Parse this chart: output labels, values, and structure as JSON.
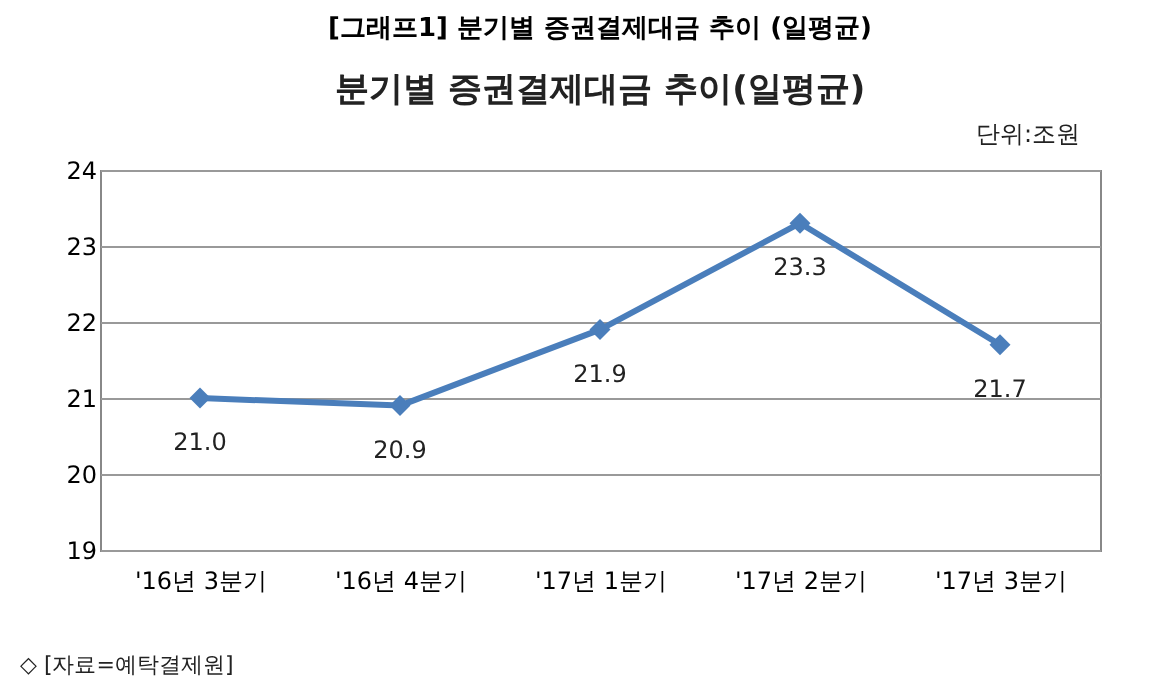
{
  "chart_data": {
    "type": "line",
    "title": "[그래프1] 분기별 증권결제대금 추이 (일평균)",
    "subtitle": "분기별 증권결제대금 추이(일평균)",
    "annotations": [
      "단위:조원",
      "◇ [자료=예탁결제원]"
    ],
    "categories": [
      "'16년 3분기",
      "'16년 4분기",
      "'17년 1분기",
      "'17년 2분기",
      "'17년 3분기"
    ],
    "series": [
      {
        "color": "#4a7ebb",
        "values": [
          21.0,
          20.9,
          21.9,
          23.3,
          21.7
        ],
        "value_labels": [
          "21.0",
          "20.9",
          "21.9",
          "23.3",
          "21.7"
        ]
      }
    ],
    "ylim": [
      19,
      24
    ],
    "yticks": [
      19,
      20,
      21,
      22,
      23,
      24
    ],
    "grid": "y",
    "marker": "diamond",
    "line_style": "solid",
    "legend": false
  }
}
